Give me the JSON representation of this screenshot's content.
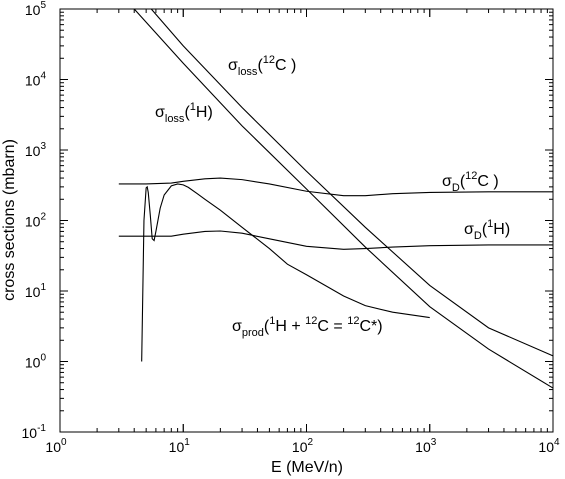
{
  "chart_data": {
    "type": "line",
    "xlabel": "E (MeV/n)",
    "ylabel": "cross sections (mbarn)",
    "xscale": "log",
    "yscale": "log",
    "xlim": [
      1,
      10000
    ],
    "ylim": [
      0.1,
      100000
    ],
    "grid": false,
    "x_ticks": [
      {
        "base": "10",
        "exp": "0",
        "value": 1
      },
      {
        "base": "10",
        "exp": "1",
        "value": 10
      },
      {
        "base": "10",
        "exp": "2",
        "value": 100
      },
      {
        "base": "10",
        "exp": "3",
        "value": 1000
      },
      {
        "base": "10",
        "exp": "4",
        "value": 10000
      }
    ],
    "y_ticks": [
      {
        "base": "10",
        "exp": "-1",
        "value": 0.1
      },
      {
        "base": "10",
        "exp": "0",
        "value": 1
      },
      {
        "base": "10",
        "exp": "1",
        "value": 10
      },
      {
        "base": "10",
        "exp": "2",
        "value": 100
      },
      {
        "base": "10",
        "exp": "3",
        "value": 1000
      },
      {
        "base": "10",
        "exp": "4",
        "value": 10000
      },
      {
        "base": "10",
        "exp": "5",
        "value": 100000
      }
    ],
    "series": [
      {
        "id": "loss_C12",
        "x": [
          5.5,
          10,
          30,
          100,
          300,
          1000,
          3000,
          10000
        ],
        "y": [
          100000,
          30000,
          4000,
          500,
          80,
          12,
          3,
          1.2
        ]
      },
      {
        "id": "loss_H1",
        "x": [
          4,
          10,
          30,
          100,
          300,
          1000,
          3000,
          10000
        ],
        "y": [
          100000,
          17000,
          2200,
          280,
          42,
          6,
          1.5,
          0.42
        ]
      },
      {
        "id": "D_C12",
        "x": [
          3,
          5,
          8,
          10,
          15,
          20,
          30,
          50,
          100,
          200,
          300,
          500,
          1000,
          3000,
          10000
        ],
        "y": [
          330,
          330,
          340,
          360,
          390,
          400,
          380,
          330,
          260,
          225,
          225,
          240,
          250,
          255,
          255
        ]
      },
      {
        "id": "D_H1",
        "x": [
          3,
          5,
          8,
          10,
          15,
          20,
          30,
          50,
          100,
          200,
          300,
          500,
          1000,
          3000,
          10000
        ],
        "y": [
          60,
          60,
          60,
          64,
          70,
          71,
          66,
          55,
          43,
          39,
          40,
          42,
          44,
          45,
          45
        ]
      },
      {
        "id": "prod",
        "x": [
          4.6,
          4.8,
          5.0,
          5.1,
          5.2,
          5.4,
          5.6,
          5.8,
          6.0,
          6.5,
          7,
          8,
          9,
          10,
          11,
          13,
          15,
          20,
          30,
          50,
          70,
          100,
          200,
          300,
          500,
          1000
        ],
        "y": [
          1,
          100,
          290,
          300,
          250,
          120,
          55,
          52,
          70,
          150,
          230,
          310,
          330,
          320,
          295,
          240,
          200,
          140,
          80,
          40,
          24,
          17,
          8.5,
          6.2,
          5,
          4.2
        ]
      }
    ],
    "labels": [
      {
        "id": "loss_C12",
        "main": "σ",
        "sub": "loss",
        "open": "(",
        "sup": "12",
        "rest": "C )"
      },
      {
        "id": "loss_H1",
        "main": "σ",
        "sub": "loss",
        "open": "(",
        "sup": "1",
        "rest": "H)"
      },
      {
        "id": "D_C12",
        "main": "σ",
        "sub": "D",
        "open": "(",
        "sup": "12",
        "rest": "C )"
      },
      {
        "id": "D_H1",
        "main": "σ",
        "sub": "D",
        "open": "(",
        "sup": "1",
        "rest": "H)"
      },
      {
        "id": "prod",
        "main": "σ",
        "sub": "prod",
        "open": "(",
        "sup": "1",
        "rest": "H + ",
        "sup2": "12",
        "rest2": "C = ",
        "sup3": "12",
        "rest3": "C*)"
      }
    ]
  }
}
